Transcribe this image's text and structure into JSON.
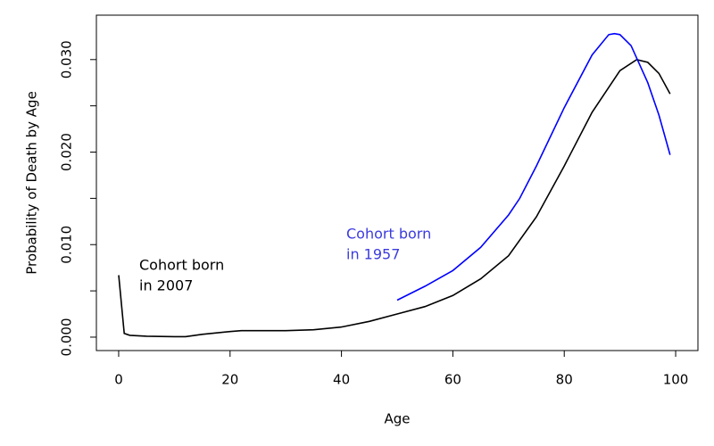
{
  "chart_data": {
    "type": "line",
    "xlabel": "Age",
    "ylabel": "Probability of Death by Age",
    "xlim": [
      -4,
      104
    ],
    "ylim": [
      -0.00145,
      0.0348
    ],
    "xticks": [
      0,
      20,
      40,
      60,
      80,
      100
    ],
    "yticks": [
      {
        "value": 0,
        "label": "0.000"
      },
      {
        "value": 0.01,
        "label": "0.010"
      },
      {
        "value": 0.02,
        "label": "0.020"
      },
      {
        "value": 0.03,
        "label": "0.030"
      }
    ],
    "yminor_ticks": [
      0.005,
      0.015,
      0.025
    ],
    "grid": false,
    "series": [
      {
        "color": "#000000",
        "x": [
          0,
          1,
          2,
          5,
          10,
          12,
          15,
          20,
          22,
          25,
          30,
          35,
          40,
          45,
          50,
          55,
          60,
          65,
          70,
          75,
          80,
          85,
          90,
          93,
          95,
          97,
          99
        ],
        "values": [
          0.0067,
          0.0004,
          0.0002,
          0.0001,
          5e-05,
          5e-05,
          0.0003,
          0.0006,
          0.0007,
          0.0007,
          0.0007,
          0.0008,
          0.0011,
          0.0017,
          0.0025,
          0.0033,
          0.0045,
          0.0063,
          0.0088,
          0.013,
          0.0185,
          0.0243,
          0.0288,
          0.03,
          0.0297,
          0.0285,
          0.0263
        ]
      },
      {
        "color": "#0000ff",
        "x": [
          50,
          55,
          60,
          65,
          70,
          72,
          75,
          80,
          85,
          88,
          89,
          90,
          92,
          95,
          97,
          99
        ],
        "values": [
          0.004,
          0.0055,
          0.0072,
          0.0097,
          0.0132,
          0.015,
          0.0185,
          0.0248,
          0.0305,
          0.0327,
          0.0328,
          0.0327,
          0.0315,
          0.0275,
          0.024,
          0.0197
        ]
      }
    ],
    "annotations": [
      {
        "lines": [
          "Cohort born",
          "in 2007"
        ],
        "color": "#000000"
      },
      {
        "lines": [
          "Cohort born",
          "in 1957"
        ],
        "color": "#3b3bdd"
      }
    ]
  }
}
